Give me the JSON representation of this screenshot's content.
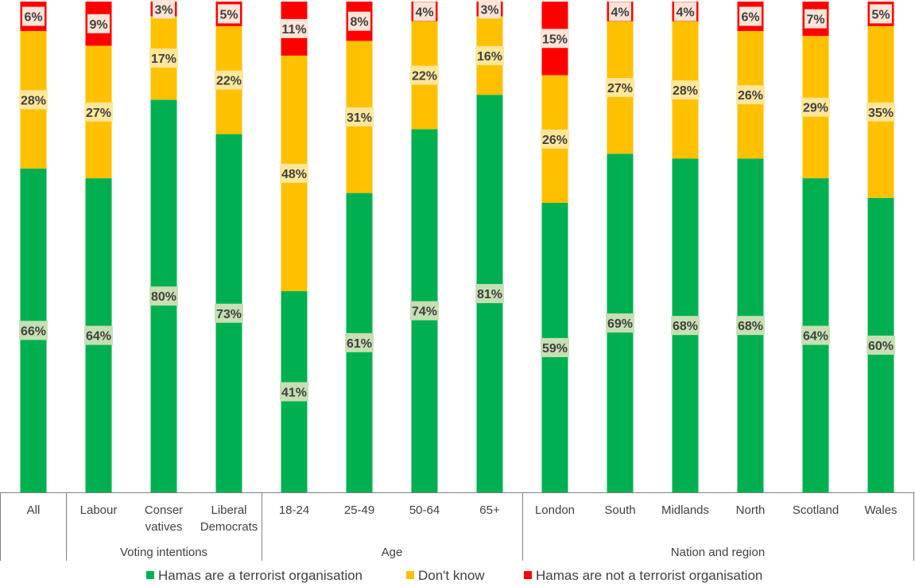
{
  "chart_data": {
    "type": "bar",
    "stacked": true,
    "percent_stacked": true,
    "categories": [
      {
        "label": "All",
        "group": ""
      },
      {
        "label": "Labour",
        "group": "Voting intentions"
      },
      {
        "label": "Conser vatives",
        "group": "Voting intentions"
      },
      {
        "label": "Liberal Democrats",
        "group": "Voting intentions"
      },
      {
        "label": "18-24",
        "group": "Age"
      },
      {
        "label": "25-49",
        "group": "Age"
      },
      {
        "label": "50-64",
        "group": "Age"
      },
      {
        "label": "65+",
        "group": "Age"
      },
      {
        "label": "London",
        "group": "Nation and region"
      },
      {
        "label": "South",
        "group": "Nation and region"
      },
      {
        "label": "Midlands",
        "group": "Nation and region"
      },
      {
        "label": "North",
        "group": "Nation and region"
      },
      {
        "label": "Scotland",
        "group": "Nation and region"
      },
      {
        "label": "Wales",
        "group": "Nation and region"
      }
    ],
    "category_lines": [
      [
        "All"
      ],
      [
        "Labour"
      ],
      [
        "Conser",
        "vatives"
      ],
      [
        "Liberal",
        "Democrats"
      ],
      [
        "18-24"
      ],
      [
        "25-49"
      ],
      [
        "50-64"
      ],
      [
        "65+"
      ],
      [
        "London"
      ],
      [
        "South"
      ],
      [
        "Midlands"
      ],
      [
        "North"
      ],
      [
        "Scotland"
      ],
      [
        "Wales"
      ]
    ],
    "groups": [
      {
        "label": "Voting intentions",
        "start": 1,
        "end": 3
      },
      {
        "label": "Age",
        "start": 4,
        "end": 7
      },
      {
        "label": "Nation and region",
        "start": 8,
        "end": 13
      }
    ],
    "series": [
      {
        "name": "Hamas are a terrorist organisation",
        "color": "#00b050",
        "label_bg": "#c6e0b4",
        "values": [
          66,
          64,
          80,
          73,
          41,
          61,
          74,
          81,
          59,
          69,
          68,
          68,
          64,
          60
        ]
      },
      {
        "name": "Don't know",
        "color": "#ffc000",
        "label_bg": "#ffe699",
        "values": [
          28,
          27,
          17,
          22,
          48,
          31,
          22,
          16,
          26,
          27,
          28,
          26,
          29,
          35
        ]
      },
      {
        "name": "Hamas are not a terrorist organisation",
        "color": "#ff0000",
        "label_bg": "#fce4d6",
        "values": [
          6,
          9,
          3,
          5,
          11,
          8,
          4,
          3,
          15,
          4,
          4,
          6,
          7,
          5
        ]
      }
    ],
    "ylim": [
      0,
      100
    ],
    "value_suffix": "%",
    "legend_position": "bottom"
  }
}
